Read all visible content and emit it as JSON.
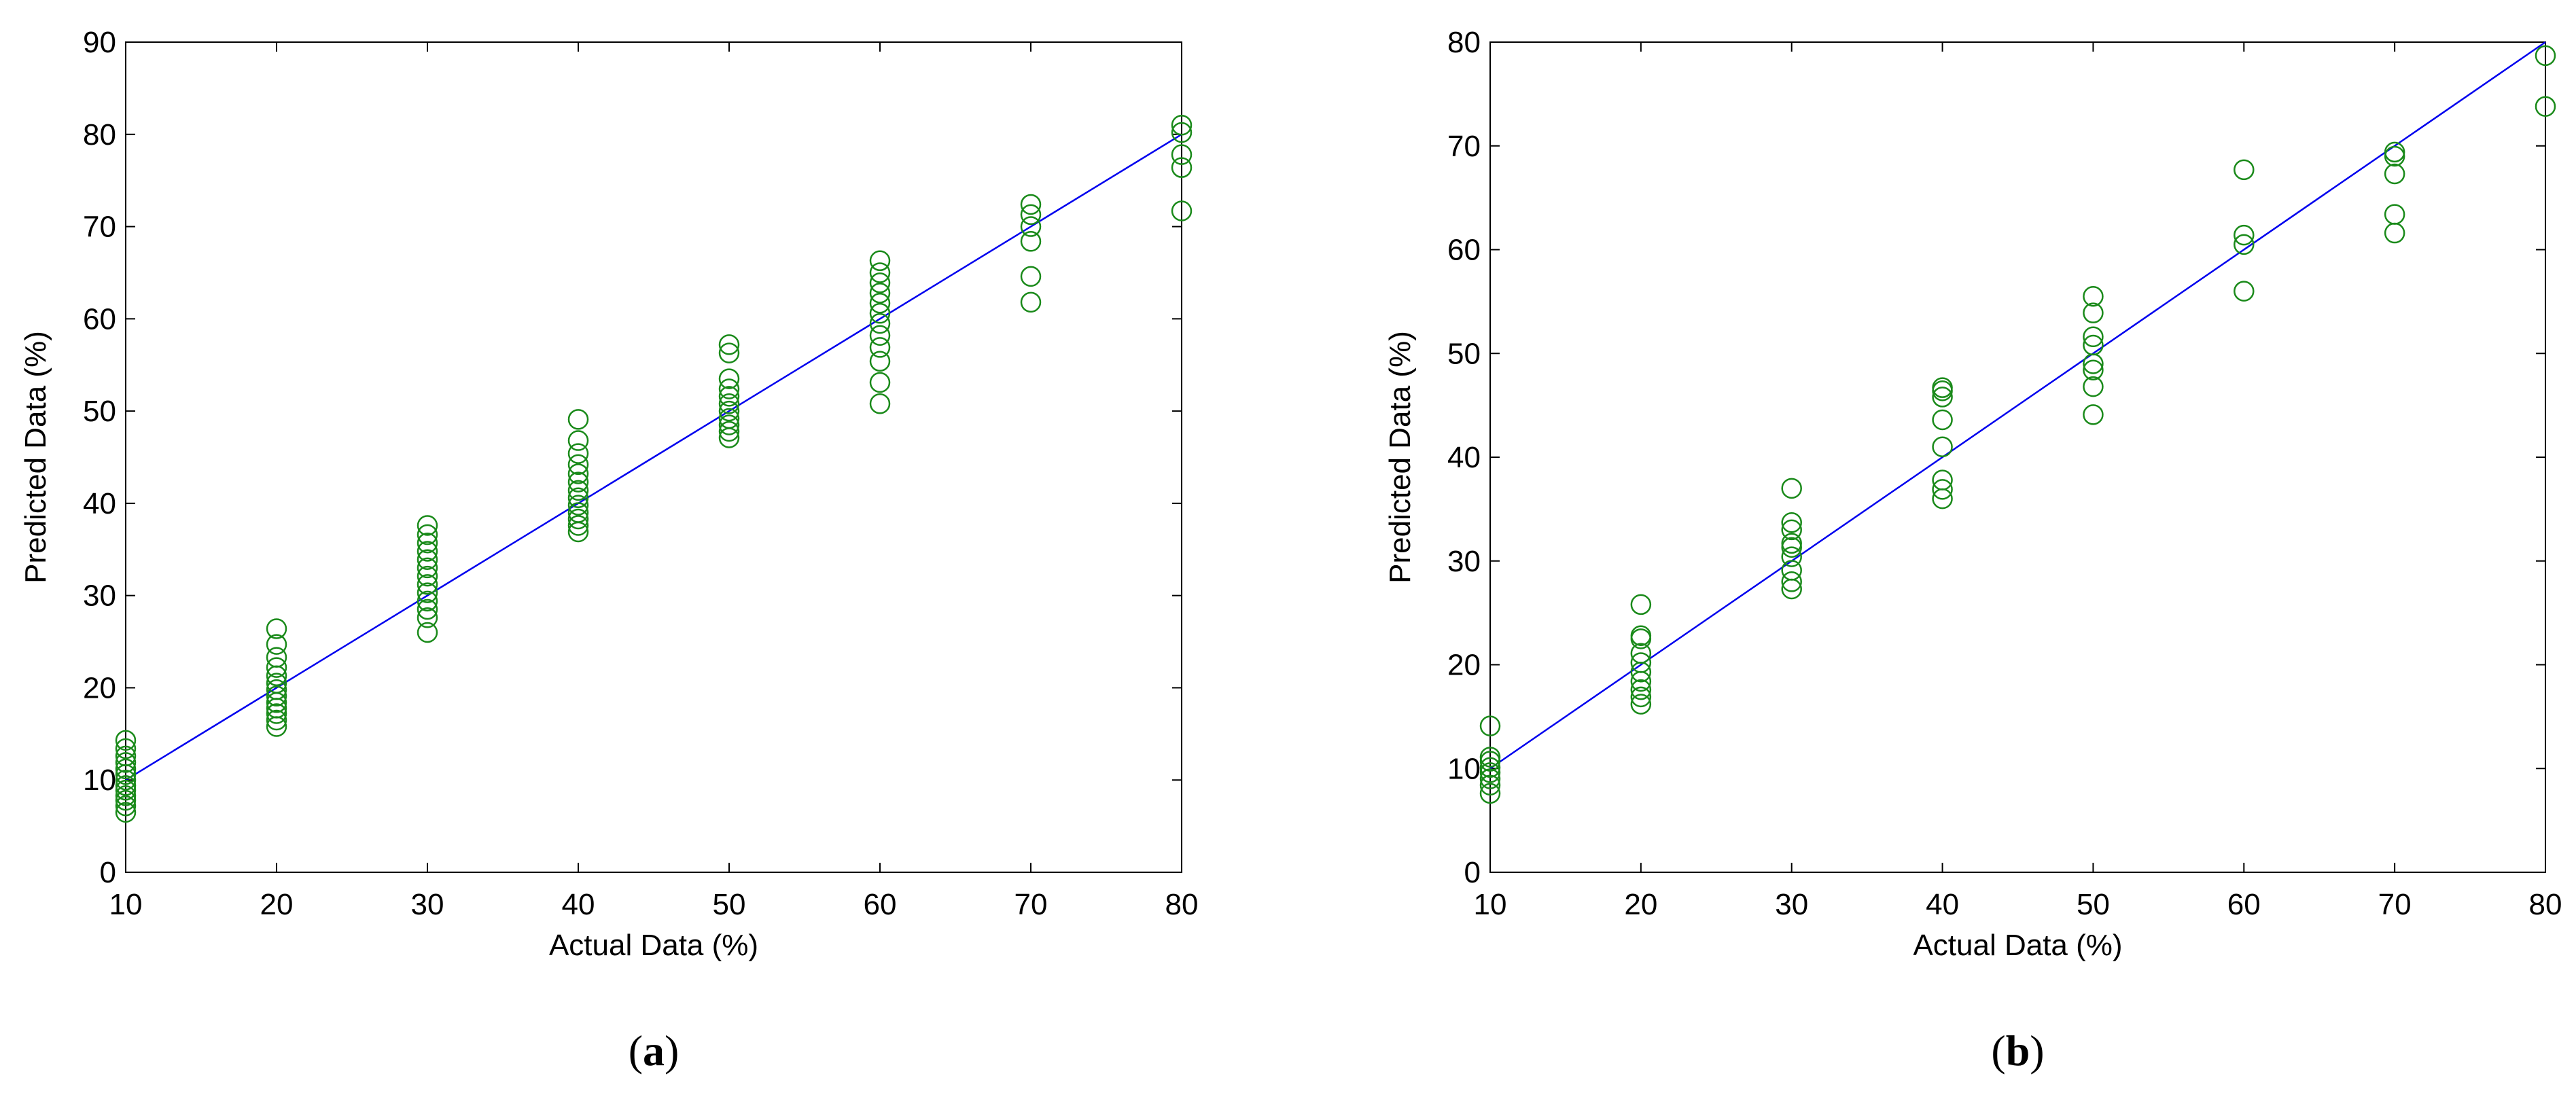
{
  "chart_data": [
    {
      "type": "scatter",
      "panel_label": "a",
      "xlabel": "Actual Data (%)",
      "ylabel": "Predicted Data (%)",
      "xlim": [
        10,
        80
      ],
      "ylim": [
        0,
        90
      ],
      "xticks": [
        10,
        20,
        30,
        40,
        50,
        60,
        70,
        80
      ],
      "yticks": [
        0,
        10,
        20,
        30,
        40,
        50,
        60,
        70,
        80,
        90
      ],
      "grid": false,
      "marker_color": "#1a8a1a",
      "line_color": "#0000ee",
      "fit_line": [
        [
          10,
          10
        ],
        [
          80,
          80
        ]
      ],
      "points": [
        [
          10,
          6.5
        ],
        [
          10,
          7.2
        ],
        [
          10,
          7.8
        ],
        [
          10,
          8.3
        ],
        [
          10,
          8.9
        ],
        [
          10,
          9.4
        ],
        [
          10,
          10.0
        ],
        [
          10,
          10.6
        ],
        [
          10,
          11.2
        ],
        [
          10,
          11.9
        ],
        [
          10,
          12.6
        ],
        [
          10,
          13.4
        ],
        [
          10,
          14.3
        ],
        [
          20,
          15.8
        ],
        [
          20,
          16.5
        ],
        [
          20,
          17.2
        ],
        [
          20,
          17.8
        ],
        [
          20,
          18.4
        ],
        [
          20,
          19.1
        ],
        [
          20,
          19.8
        ],
        [
          20,
          20.5
        ],
        [
          20,
          21.3
        ],
        [
          20,
          22.2
        ],
        [
          20,
          23.3
        ],
        [
          20,
          24.7
        ],
        [
          20,
          26.4
        ],
        [
          30,
          26.0
        ],
        [
          30,
          27.6
        ],
        [
          30,
          28.5
        ],
        [
          30,
          29.4
        ],
        [
          30,
          30.3
        ],
        [
          30,
          31.2
        ],
        [
          30,
          32.1
        ],
        [
          30,
          33.0
        ],
        [
          30,
          33.9
        ],
        [
          30,
          34.8
        ],
        [
          30,
          35.7
        ],
        [
          30,
          36.6
        ],
        [
          30,
          37.6
        ],
        [
          40,
          36.9
        ],
        [
          40,
          37.6
        ],
        [
          40,
          38.3
        ],
        [
          40,
          39.0
        ],
        [
          40,
          39.8
        ],
        [
          40,
          40.6
        ],
        [
          40,
          41.4
        ],
        [
          40,
          42.3
        ],
        [
          40,
          43.2
        ],
        [
          40,
          44.2
        ],
        [
          40,
          45.4
        ],
        [
          40,
          46.8
        ],
        [
          40,
          49.1
        ],
        [
          50,
          47.1
        ],
        [
          50,
          47.8
        ],
        [
          50,
          48.5
        ],
        [
          50,
          49.2
        ],
        [
          50,
          50.0
        ],
        [
          50,
          50.8
        ],
        [
          50,
          51.6
        ],
        [
          50,
          52.4
        ],
        [
          50,
          53.5
        ],
        [
          50,
          56.3
        ],
        [
          50,
          57.2
        ],
        [
          60,
          50.8
        ],
        [
          60,
          53.1
        ],
        [
          60,
          55.4
        ],
        [
          60,
          56.9
        ],
        [
          60,
          58.2
        ],
        [
          60,
          59.5
        ],
        [
          60,
          60.6
        ],
        [
          60,
          61.7
        ],
        [
          60,
          62.8
        ],
        [
          60,
          63.9
        ],
        [
          60,
          65.0
        ],
        [
          60,
          66.3
        ],
        [
          70,
          61.8
        ],
        [
          70,
          64.6
        ],
        [
          70,
          68.4
        ],
        [
          70,
          70.0
        ],
        [
          70,
          71.3
        ],
        [
          70,
          72.4
        ],
        [
          80,
          71.7
        ],
        [
          80,
          76.4
        ],
        [
          80,
          77.8
        ],
        [
          80,
          80.2
        ],
        [
          80,
          81.0
        ]
      ]
    },
    {
      "type": "scatter",
      "panel_label": "b",
      "xlabel": "Actual Data (%)",
      "ylabel": "Predicted Data (%)",
      "xlim": [
        10,
        80
      ],
      "ylim": [
        0,
        80
      ],
      "xticks": [
        10,
        20,
        30,
        40,
        50,
        60,
        70,
        80
      ],
      "yticks": [
        0,
        10,
        20,
        30,
        40,
        50,
        60,
        70,
        80
      ],
      "grid": false,
      "marker_color": "#1a8a1a",
      "line_color": "#0000ee",
      "fit_line": [
        [
          10,
          10
        ],
        [
          80,
          80
        ]
      ],
      "points": [
        [
          10,
          7.6
        ],
        [
          10,
          8.4
        ],
        [
          10,
          9.0
        ],
        [
          10,
          9.6
        ],
        [
          10,
          10.1
        ],
        [
          10,
          10.7
        ],
        [
          10,
          11.1
        ],
        [
          10,
          14.1
        ],
        [
          20,
          16.2
        ],
        [
          20,
          16.9
        ],
        [
          20,
          17.6
        ],
        [
          20,
          18.4
        ],
        [
          20,
          19.3
        ],
        [
          20,
          20.2
        ],
        [
          20,
          21.1
        ],
        [
          20,
          22.5
        ],
        [
          20,
          22.8
        ],
        [
          20,
          25.8
        ],
        [
          30,
          27.3
        ],
        [
          30,
          28.0
        ],
        [
          30,
          29.1
        ],
        [
          30,
          30.4
        ],
        [
          30,
          31.3
        ],
        [
          30,
          31.7
        ],
        [
          30,
          33.0
        ],
        [
          30,
          33.7
        ],
        [
          30,
          37.0
        ],
        [
          40,
          36.0
        ],
        [
          40,
          36.9
        ],
        [
          40,
          37.8
        ],
        [
          40,
          41.0
        ],
        [
          40,
          43.6
        ],
        [
          40,
          45.8
        ],
        [
          40,
          46.4
        ],
        [
          40,
          46.7
        ],
        [
          50,
          44.1
        ],
        [
          50,
          46.8
        ],
        [
          50,
          48.4
        ],
        [
          50,
          49.0
        ],
        [
          50,
          50.8
        ],
        [
          50,
          51.6
        ],
        [
          50,
          53.9
        ],
        [
          50,
          55.5
        ],
        [
          60,
          56.0
        ],
        [
          60,
          60.5
        ],
        [
          60,
          61.4
        ],
        [
          60,
          67.7
        ],
        [
          70,
          61.6
        ],
        [
          70,
          63.4
        ],
        [
          70,
          67.3
        ],
        [
          70,
          69.0
        ],
        [
          70,
          69.4
        ],
        [
          80,
          73.8
        ],
        [
          80,
          78.7
        ]
      ]
    }
  ]
}
